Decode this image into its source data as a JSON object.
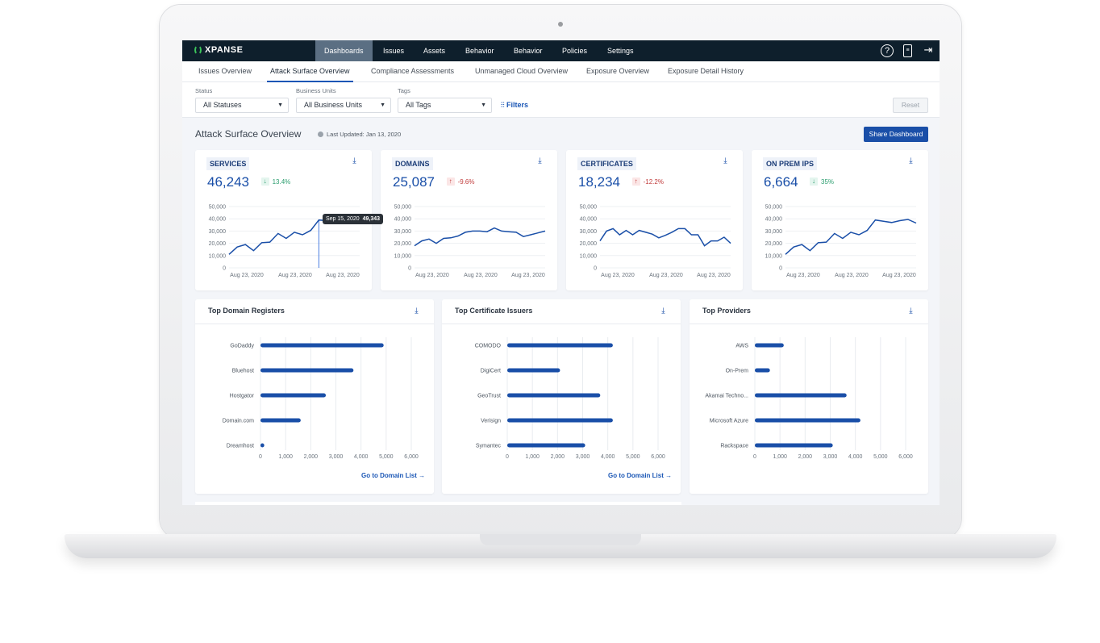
{
  "colors": {
    "nav_bg": "#0e1f2c",
    "accent": "#1a4fa8",
    "line": "#1a4fa8",
    "positive": "#2a9d6e",
    "negative": "#c03a3a"
  },
  "nav": {
    "brand": "XPANSE",
    "items": [
      "Dashboards",
      "Issues",
      "Assets",
      "Behavior",
      "Behavior",
      "Policies",
      "Settings"
    ],
    "active": "Dashboards",
    "icons": [
      "help-circle-icon",
      "document-icon",
      "logout-icon"
    ]
  },
  "tabs": {
    "items": [
      "Issues Overview",
      "Attack Surface Overview",
      "Compliance Assessments",
      "Unmanaged Cloud Overview",
      "Exposure Overview",
      "Exposure Detail History"
    ],
    "active": "Attack Surface Overview"
  },
  "filters": {
    "status": {
      "label": "Status",
      "value": "All Statuses"
    },
    "business_units": {
      "label": "Business Units",
      "value": "All Business Units"
    },
    "tags": {
      "label": "Tags",
      "value": "All Tags"
    },
    "filters_label": "Filters",
    "reset_label": "Reset"
  },
  "page": {
    "title": "Attack Surface Overview",
    "last_updated": "Last Updated: Jan 13, 2020",
    "share_label": "Share Dashboard"
  },
  "kpis": [
    {
      "title": "SERVICES",
      "value": "46,243",
      "delta": "13.4%",
      "direction": "down"
    },
    {
      "title": "DOMAINS",
      "value": "25,087",
      "delta": "-9.6%",
      "direction": "up"
    },
    {
      "title": "CERTIFICATES",
      "value": "18,234",
      "delta": "-12.2%",
      "direction": "up"
    },
    {
      "title": "ON PREM IPS",
      "value": "6,664",
      "delta": "35%",
      "direction": "down"
    }
  ],
  "tooltip": {
    "date": "Sep 15, 2020",
    "value": "49,343"
  },
  "cards": [
    {
      "title": "Top Domain Registers",
      "link": "Go to Domain List →"
    },
    {
      "title": "Top Certificate Issuers",
      "link": "Go to Domain List →"
    },
    {
      "title": "Top Providers",
      "link": ""
    }
  ],
  "chart_data": [
    {
      "type": "line",
      "name": "SERVICES",
      "ylim": [
        0,
        50000
      ],
      "yticks": [
        "0",
        "10,000",
        "20,000",
        "30,000",
        "40,000",
        "50,000"
      ],
      "xticks": [
        "Aug 23, 2020",
        "Aug 23, 2020",
        "Aug 23, 2020"
      ],
      "values": [
        11000,
        17000,
        19000,
        14000,
        20500,
        21000,
        28000,
        24000,
        29000,
        27000,
        30500,
        39000,
        38500
      ]
    },
    {
      "type": "line",
      "name": "DOMAINS",
      "ylim": [
        0,
        50000
      ],
      "yticks": [
        "0",
        "10,000",
        "20,000",
        "30,000",
        "40,000",
        "50,000"
      ],
      "xticks": [
        "Aug 23, 2020",
        "Aug 23, 2020",
        "Aug 23, 2020"
      ],
      "values": [
        18000,
        22000,
        23500,
        20000,
        24000,
        24500,
        26000,
        29000,
        30000,
        30000,
        29500,
        32500,
        30000,
        29500,
        29000,
        25500,
        27000,
        28500,
        30000
      ]
    },
    {
      "type": "line",
      "name": "CERTIFICATES",
      "ylim": [
        0,
        50000
      ],
      "yticks": [
        "0",
        "10,000",
        "20,000",
        "30,000",
        "40,000",
        "50,000"
      ],
      "xticks": [
        "Aug 23, 2020",
        "Aug 23, 2020",
        "Aug 23, 2020"
      ],
      "values": [
        22000,
        30000,
        32000,
        27000,
        30500,
        27000,
        30500,
        29000,
        27500,
        24500,
        26500,
        29000,
        32000,
        32000,
        27000,
        27000,
        18000,
        22000,
        22000,
        25000,
        20000
      ]
    },
    {
      "type": "line",
      "name": "ON PREM IPS",
      "ylim": [
        0,
        50000
      ],
      "yticks": [
        "0",
        "10,000",
        "20,000",
        "30,000",
        "40,000",
        "50,000"
      ],
      "xticks": [
        "Aug 23, 2020",
        "Aug 23, 2020",
        "Aug 23, 2020"
      ],
      "values": [
        11000,
        17000,
        19000,
        14000,
        20500,
        21000,
        28000,
        24000,
        29000,
        27000,
        30500,
        39000,
        38000,
        37000,
        38500,
        39500,
        36500
      ]
    },
    {
      "type": "bar",
      "title": "Top Domain Registers",
      "categories": [
        "GoDaddy",
        "Bluehost",
        "Hostgator",
        "Domain.com",
        "Dreamhost"
      ],
      "values": [
        4900,
        3700,
        2600,
        1600,
        150
      ],
      "xlim": [
        0,
        6000
      ],
      "xticks": [
        "0",
        "1,000",
        "2,000",
        "3,000",
        "4,000",
        "5,000",
        "6,000"
      ],
      "grid": true
    },
    {
      "type": "bar",
      "title": "Top Certificate Issuers",
      "categories": [
        "COMODO",
        "DigiCert",
        "GeoTrust",
        "Verisign",
        "Symantec"
      ],
      "values": [
        4200,
        2100,
        3700,
        4200,
        3100
      ],
      "xlim": [
        0,
        6000
      ],
      "xticks": [
        "0",
        "1,000",
        "2,000",
        "3,000",
        "4,000",
        "5,000",
        "6,000"
      ],
      "grid": true
    },
    {
      "type": "bar",
      "title": "Top Providers",
      "categories": [
        "AWS",
        "On-Prem",
        "Akamai Techno...",
        "Microsoft Azure",
        "Rackspace"
      ],
      "values": [
        1150,
        600,
        3650,
        4200,
        3100
      ],
      "xlim": [
        0,
        6000
      ],
      "xticks": [
        "0",
        "1,000",
        "2,000",
        "3,000",
        "4,000",
        "5,000",
        "6,000"
      ],
      "grid": true
    }
  ]
}
